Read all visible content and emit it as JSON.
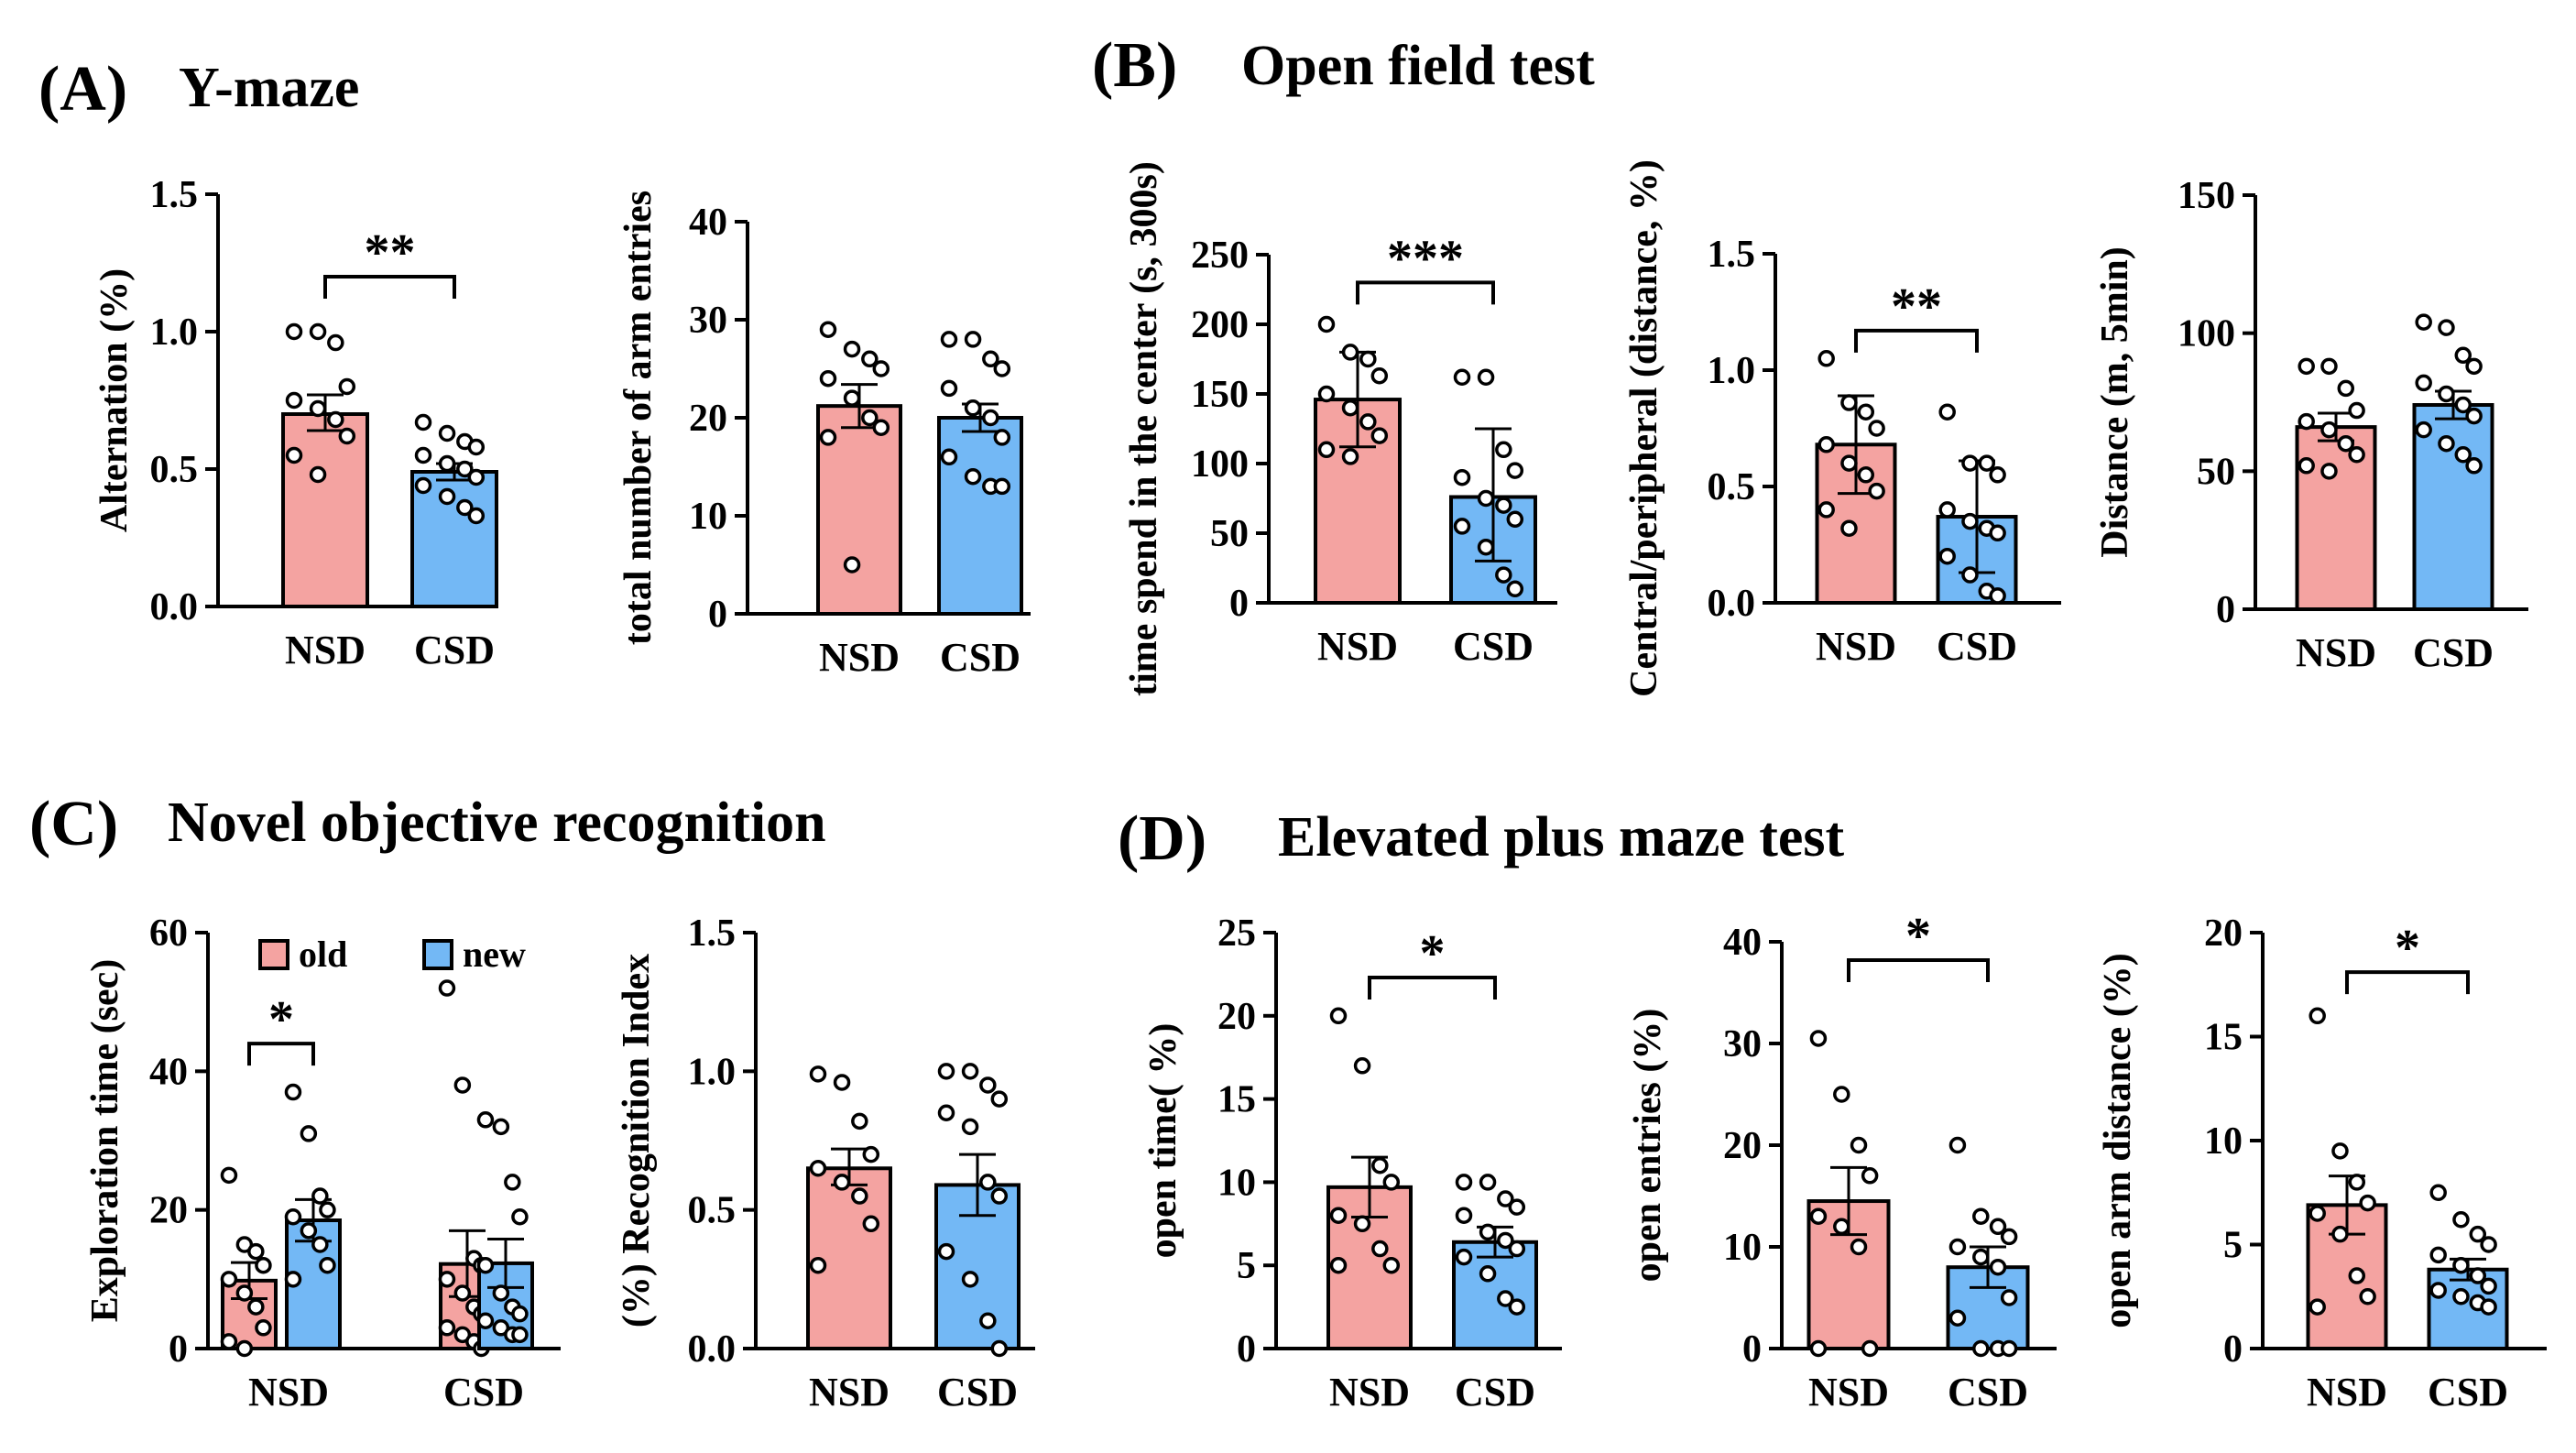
{
  "colors": {
    "nsd": "#F4A3A1",
    "csd": "#73B8F5",
    "axis": "#000000",
    "point_fill": "#ffffff"
  },
  "chart_data": [
    {
      "id": "ymaze-alt",
      "panel": "(A)",
      "panel_title": "Y-maze",
      "type": "bar",
      "ylabel": "Alternation (%)",
      "ylim": [
        0,
        1.5
      ],
      "yticks": [
        "0.0",
        "0.5",
        "1.0",
        "1.5"
      ],
      "categories": [
        "NSD",
        "CSD"
      ],
      "bars": [
        {
          "category": "NSD",
          "mean": 0.7,
          "err_low": 0.64,
          "err_high": 0.77,
          "color": "nsd",
          "points": [
            1.0,
            1.0,
            0.96,
            0.8,
            0.75,
            0.72,
            0.68,
            0.62,
            0.55,
            0.48
          ]
        },
        {
          "category": "CSD",
          "mean": 0.49,
          "err_low": 0.46,
          "err_high": 0.52,
          "color": "csd",
          "points": [
            0.67,
            0.63,
            0.6,
            0.58,
            0.55,
            0.52,
            0.5,
            0.47,
            0.44,
            0.4,
            0.36,
            0.33
          ]
        }
      ],
      "significance": [
        {
          "from": 0,
          "to": 1,
          "label": "**",
          "y": 1.2
        }
      ]
    },
    {
      "id": "ymaze-entries",
      "panel": "",
      "panel_title": "",
      "type": "bar",
      "ylabel": "total number of arm entries",
      "ylim": [
        0,
        40
      ],
      "yticks": [
        "0",
        "10",
        "20",
        "30",
        "40"
      ],
      "categories": [
        "NSD",
        "CSD"
      ],
      "bars": [
        {
          "category": "NSD",
          "mean": 21.2,
          "err_low": 19.0,
          "err_high": 23.4,
          "color": "nsd",
          "points": [
            29,
            27,
            26,
            25,
            24,
            22,
            20,
            19,
            18,
            5
          ]
        },
        {
          "category": "CSD",
          "mean": 20.0,
          "err_low": 18.6,
          "err_high": 21.4,
          "color": "csd",
          "points": [
            28,
            28,
            26,
            25,
            23,
            21,
            20,
            18,
            16,
            14,
            13,
            13
          ]
        }
      ],
      "significance": []
    },
    {
      "id": "oft-center",
      "panel": "(B)",
      "panel_title": "Open field test",
      "type": "bar",
      "ylabel": "time spend in the center (s, 300s)",
      "ylim": [
        0,
        250
      ],
      "yticks": [
        "0",
        "50",
        "100",
        "150",
        "200",
        "250"
      ],
      "categories": [
        "NSD",
        "CSD"
      ],
      "bars": [
        {
          "category": "NSD",
          "mean": 146,
          "err_low": 112,
          "err_high": 180,
          "color": "nsd",
          "points": [
            200,
            180,
            175,
            163,
            150,
            140,
            130,
            120,
            110,
            105
          ]
        },
        {
          "category": "CSD",
          "mean": 76,
          "err_low": 30,
          "err_high": 125,
          "color": "csd",
          "points": [
            162,
            162,
            110,
            95,
            90,
            75,
            70,
            60,
            55,
            40,
            20,
            10
          ]
        }
      ],
      "significance": [
        {
          "from": 0,
          "to": 1,
          "label": "***",
          "y": 230
        }
      ]
    },
    {
      "id": "oft-ratio",
      "panel": "",
      "panel_title": "",
      "type": "bar",
      "ylabel": "Central/peripheral (distance, %)",
      "ylim": [
        0,
        1.5
      ],
      "yticks": [
        "0.0",
        "0.5",
        "1.0",
        "1.5"
      ],
      "categories": [
        "NSD",
        "CSD"
      ],
      "bars": [
        {
          "category": "NSD",
          "mean": 0.68,
          "err_low": 0.47,
          "err_high": 0.89,
          "color": "nsd",
          "points": [
            1.05,
            0.86,
            0.82,
            0.75,
            0.68,
            0.6,
            0.55,
            0.48,
            0.4,
            0.32
          ]
        },
        {
          "category": "CSD",
          "mean": 0.37,
          "err_low": 0.13,
          "err_high": 0.61,
          "color": "csd",
          "points": [
            0.82,
            0.6,
            0.6,
            0.55,
            0.4,
            0.35,
            0.32,
            0.3,
            0.2,
            0.12,
            0.05,
            0.03
          ]
        }
      ],
      "significance": [
        {
          "from": 0,
          "to": 1,
          "label": "**",
          "y": 1.17
        }
      ]
    },
    {
      "id": "oft-distance",
      "panel": "",
      "panel_title": "",
      "type": "bar",
      "ylabel": "Distance (m, 5min)",
      "ylim": [
        0,
        150
      ],
      "yticks": [
        "0",
        "50",
        "100",
        "150"
      ],
      "categories": [
        "NSD",
        "CSD"
      ],
      "bars": [
        {
          "category": "NSD",
          "mean": 66,
          "err_low": 61,
          "err_high": 71,
          "color": "nsd",
          "points": [
            88,
            88,
            80,
            72,
            68,
            65,
            60,
            56,
            52,
            50
          ]
        },
        {
          "category": "CSD",
          "mean": 74,
          "err_low": 69,
          "err_high": 79,
          "color": "csd",
          "points": [
            104,
            102,
            92,
            88,
            82,
            78,
            74,
            70,
            65,
            60,
            56,
            52
          ]
        }
      ],
      "significance": []
    },
    {
      "id": "nor-exploration",
      "panel": "(C)",
      "panel_title": "Novel objective recognition",
      "type": "bar",
      "ylabel": "Exploration time (sec)",
      "ylim": [
        0,
        60
      ],
      "yticks": [
        "0",
        "20",
        "40",
        "60"
      ],
      "categories": [
        "NSD",
        "CSD"
      ],
      "legend": [
        {
          "label": "old",
          "color": "nsd"
        },
        {
          "label": "new",
          "color": "csd"
        }
      ],
      "bars": [
        {
          "category": "NSD",
          "group": "old",
          "mean": 9.8,
          "err_low": 7.2,
          "err_high": 12.4,
          "color": "nsd",
          "points": [
            25,
            15,
            14,
            12,
            10,
            8,
            6,
            3,
            1,
            0
          ]
        },
        {
          "category": "NSD",
          "group": "new",
          "mean": 18.5,
          "err_low": 15.5,
          "err_high": 21.5,
          "color": "csd",
          "points": [
            37,
            31,
            22,
            20,
            19,
            17,
            15,
            12,
            10
          ]
        },
        {
          "category": "CSD",
          "group": "old",
          "mean": 12.2,
          "err_low": 7.5,
          "err_high": 17,
          "color": "nsd",
          "points": [
            52,
            38,
            13,
            12,
            10,
            8,
            6,
            5,
            3,
            2,
            1,
            0
          ]
        },
        {
          "category": "CSD",
          "group": "new",
          "mean": 12.3,
          "err_low": 8.8,
          "err_high": 15.8,
          "color": "csd",
          "points": [
            33,
            32,
            24,
            19,
            12,
            8,
            6,
            5,
            4,
            3,
            2,
            2
          ]
        }
      ],
      "significance": [
        {
          "from": 0,
          "to": 1,
          "label": "*",
          "y": 44
        }
      ]
    },
    {
      "id": "nor-index",
      "panel": "",
      "panel_title": "",
      "type": "bar",
      "ylabel": "(%) Recognition Index",
      "ylim": [
        0,
        1.5
      ],
      "yticks": [
        "0.0",
        "0.5",
        "1.0",
        "1.5"
      ],
      "categories": [
        "NSD",
        "CSD"
      ],
      "bars": [
        {
          "category": "NSD",
          "mean": 0.65,
          "err_low": 0.59,
          "err_high": 0.72,
          "color": "nsd",
          "points": [
            0.99,
            0.96,
            0.82,
            0.7,
            0.65,
            0.6,
            0.55,
            0.45,
            0.3
          ]
        },
        {
          "category": "CSD",
          "mean": 0.59,
          "err_low": 0.48,
          "err_high": 0.7,
          "color": "csd",
          "points": [
            1.0,
            1.0,
            0.95,
            0.9,
            0.85,
            0.8,
            0.6,
            0.55,
            0.35,
            0.25,
            0.1,
            0.0
          ]
        }
      ],
      "significance": []
    },
    {
      "id": "epm-time",
      "panel": "(D)",
      "panel_title": "Elevated plus maze test",
      "type": "bar",
      "ylabel": "open time( %)",
      "ylim": [
        0,
        25
      ],
      "yticks": [
        "0",
        "5",
        "10",
        "15",
        "20",
        "25"
      ],
      "categories": [
        "NSD",
        "CSD"
      ],
      "bars": [
        {
          "category": "NSD",
          "mean": 9.7,
          "err_low": 7.9,
          "err_high": 11.5,
          "color": "nsd",
          "points": [
            20,
            17,
            11,
            10,
            8,
            7.5,
            6,
            5,
            5
          ]
        },
        {
          "category": "CSD",
          "mean": 6.4,
          "err_low": 5.5,
          "err_high": 7.3,
          "color": "csd",
          "points": [
            10,
            10,
            9,
            8.5,
            8,
            7,
            6.5,
            6,
            5.5,
            4.5,
            3,
            2.5
          ]
        }
      ],
      "significance": [
        {
          "from": 0,
          "to": 1,
          "label": "*",
          "y": 22.3
        }
      ]
    },
    {
      "id": "epm-entries",
      "panel": "",
      "panel_title": "",
      "type": "bar",
      "ylabel": "open entries (%)",
      "ylim": [
        0,
        40
      ],
      "yticks": [
        "0",
        "10",
        "20",
        "30",
        "40"
      ],
      "categories": [
        "NSD",
        "CSD"
      ],
      "bars": [
        {
          "category": "NSD",
          "mean": 14.5,
          "err_low": 11.2,
          "err_high": 17.8,
          "color": "nsd",
          "points": [
            30.5,
            25,
            20,
            17,
            13,
            12,
            10,
            0,
            0
          ]
        },
        {
          "category": "CSD",
          "mean": 8.0,
          "err_low": 6.0,
          "err_high": 10.0,
          "color": "csd",
          "points": [
            20,
            13,
            12,
            11,
            10,
            9,
            8,
            5,
            3,
            0,
            0,
            0
          ]
        }
      ],
      "significance": [
        {
          "from": 0,
          "to": 1,
          "label": "*",
          "y": 38.2
        }
      ]
    },
    {
      "id": "epm-distance",
      "panel": "",
      "panel_title": "",
      "type": "bar",
      "ylabel": "open arm distance (%)",
      "ylim": [
        0,
        20
      ],
      "yticks": [
        "0",
        "5",
        "10",
        "15",
        "20"
      ],
      "categories": [
        "NSD",
        "CSD"
      ],
      "bars": [
        {
          "category": "NSD",
          "mean": 6.9,
          "err_low": 5.5,
          "err_high": 8.3,
          "color": "nsd",
          "points": [
            16,
            9.5,
            8,
            7,
            6.5,
            5.5,
            3.5,
            2.5,
            2
          ]
        },
        {
          "category": "CSD",
          "mean": 3.8,
          "err_low": 3.3,
          "err_high": 4.3,
          "color": "csd",
          "points": [
            7.5,
            6.2,
            5.5,
            5,
            4.5,
            4,
            3.5,
            3,
            2.8,
            2.5,
            2.2,
            2
          ]
        }
      ],
      "significance": [
        {
          "from": 0,
          "to": 1,
          "label": "*",
          "y": 18.1
        }
      ]
    }
  ]
}
